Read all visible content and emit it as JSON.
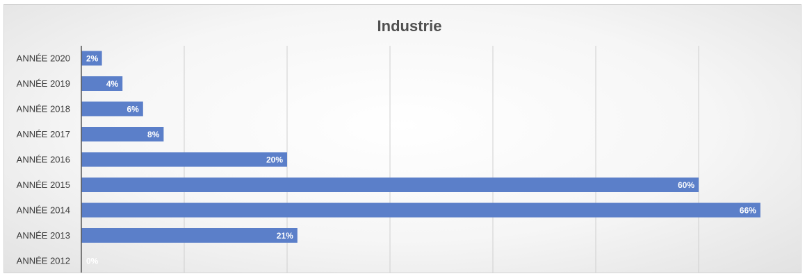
{
  "chart_data": {
    "type": "bar",
    "orientation": "horizontal",
    "title": "Industrie",
    "categories": [
      "ANNÉE 2020",
      "ANNÉE 2019",
      "ANNÉE 2018",
      "ANNÉE 2017",
      "ANNÉE 2016",
      "ANNÉE 2015",
      "ANNÉE 2014",
      "ANNÉE 2013",
      "ANNÉE 2012"
    ],
    "values": [
      2,
      4,
      6,
      8,
      20,
      60,
      66,
      21,
      0
    ],
    "data_labels": [
      "2%",
      "4%",
      "6%",
      "8%",
      "20%",
      "60%",
      "66%",
      "21%",
      "0%"
    ],
    "value_unit": "%",
    "xlim": [
      0,
      70
    ],
    "gridline_step": 10,
    "x_axis_visible": false,
    "grid": true,
    "legend": "none",
    "bar_color": "#5b7fc9"
  }
}
